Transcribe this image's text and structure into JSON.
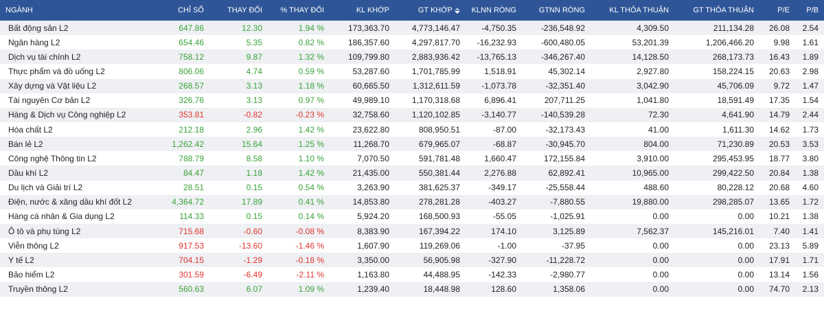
{
  "columns": [
    "NGÀNH",
    "CHỈ SỐ",
    "THAY ĐỔI",
    "% THAY ĐỔI",
    "KL KHỚP",
    "GT KHỚP",
    "KLNN RÒNG",
    "GTNN RÒNG",
    "KL THỎA THUẬN",
    "GT THỎA THUẬN",
    "P/E",
    "P/B"
  ],
  "sort": {
    "column": "GT KHỚP",
    "icon": "sort-icon"
  },
  "colors": {
    "header_bg": "#2e5597",
    "up": "#3aa23a",
    "down": "#e0342f",
    "row_alt": "#eef0f3"
  },
  "rows": [
    {
      "name": "Bất động sản L2",
      "index": "647.86",
      "change": "12.30",
      "pct": "1.94 %",
      "vol": "173,363.70",
      "val": "4,773,146.47",
      "klnn": "-4,750.35",
      "gtnn": "-236,548.92",
      "klthoa": "4,309.50",
      "gtthoa": "211,134.28",
      "pe": "26.08",
      "pb": "2.54",
      "dir": "up"
    },
    {
      "name": "Ngân hàng L2",
      "index": "654.46",
      "change": "5.35",
      "pct": "0.82 %",
      "vol": "186,357.60",
      "val": "4,297,817.70",
      "klnn": "-16,232.93",
      "gtnn": "-600,480.05",
      "klthoa": "53,201.39",
      "gtthoa": "1,206,466.20",
      "pe": "9.98",
      "pb": "1.61",
      "dir": "up"
    },
    {
      "name": "Dịch vụ tài chính L2",
      "index": "758.12",
      "change": "9.87",
      "pct": "1.32 %",
      "vol": "109,799.80",
      "val": "2,883,936.42",
      "klnn": "-13,765.13",
      "gtnn": "-346,267.40",
      "klthoa": "14,128.50",
      "gtthoa": "268,173.73",
      "pe": "16.43",
      "pb": "1.89",
      "dir": "up"
    },
    {
      "name": "Thực phẩm và đồ uống L2",
      "index": "806.06",
      "change": "4.74",
      "pct": "0.59 %",
      "vol": "53,287.60",
      "val": "1,701,785.99",
      "klnn": "1,518.91",
      "gtnn": "45,302.14",
      "klthoa": "2,927.80",
      "gtthoa": "158,224.15",
      "pe": "20.63",
      "pb": "2.98",
      "dir": "up"
    },
    {
      "name": "Xây dựng và Vật liệu L2",
      "index": "268.57",
      "change": "3.13",
      "pct": "1.18 %",
      "vol": "60,665.50",
      "val": "1,312,611.59",
      "klnn": "-1,073.78",
      "gtnn": "-32,351.40",
      "klthoa": "3,042.90",
      "gtthoa": "45,706.09",
      "pe": "9.72",
      "pb": "1.47",
      "dir": "up"
    },
    {
      "name": "Tài nguyên Cơ bản L2",
      "index": "326.76",
      "change": "3.13",
      "pct": "0.97 %",
      "vol": "49,989.10",
      "val": "1,170,318.68",
      "klnn": "6,896.41",
      "gtnn": "207,711.25",
      "klthoa": "1,041.80",
      "gtthoa": "18,591.49",
      "pe": "17.35",
      "pb": "1.54",
      "dir": "up"
    },
    {
      "name": "Hàng & Dịch vụ Công nghiệp L2",
      "index": "353.81",
      "change": "-0.82",
      "pct": "-0.23 %",
      "vol": "32,758.60",
      "val": "1,120,102.85",
      "klnn": "-3,140.77",
      "gtnn": "-140,539.28",
      "klthoa": "72.30",
      "gtthoa": "4,641.90",
      "pe": "14.79",
      "pb": "2.44",
      "dir": "down"
    },
    {
      "name": "Hóa chất L2",
      "index": "212.18",
      "change": "2.96",
      "pct": "1.42 %",
      "vol": "23,622.80",
      "val": "808,950.51",
      "klnn": "-87.00",
      "gtnn": "-32,173.43",
      "klthoa": "41.00",
      "gtthoa": "1,611.30",
      "pe": "14.62",
      "pb": "1.73",
      "dir": "up"
    },
    {
      "name": "Bán lẻ L2",
      "index": "1,262.42",
      "change": "15.64",
      "pct": "1.25 %",
      "vol": "11,268.70",
      "val": "679,965.07",
      "klnn": "-68.87",
      "gtnn": "-30,945.70",
      "klthoa": "804.00",
      "gtthoa": "71,230.89",
      "pe": "20.53",
      "pb": "3.53",
      "dir": "up"
    },
    {
      "name": "Công nghệ Thông tin L2",
      "index": "788.79",
      "change": "8.58",
      "pct": "1.10 %",
      "vol": "7,070.50",
      "val": "591,781.48",
      "klnn": "1,660.47",
      "gtnn": "172,155.84",
      "klthoa": "3,910.00",
      "gtthoa": "295,453.95",
      "pe": "18.77",
      "pb": "3.80",
      "dir": "up"
    },
    {
      "name": "Dầu khí L2",
      "index": "84.47",
      "change": "1.18",
      "pct": "1.42 %",
      "vol": "21,435.00",
      "val": "550,381.44",
      "klnn": "2,276.88",
      "gtnn": "62,892.41",
      "klthoa": "10,965.00",
      "gtthoa": "299,422.50",
      "pe": "20.84",
      "pb": "1.38",
      "dir": "up"
    },
    {
      "name": "Du lịch và Giải trí L2",
      "index": "28.51",
      "change": "0.15",
      "pct": "0.54 %",
      "vol": "3,263.90",
      "val": "381,625.37",
      "klnn": "-349.17",
      "gtnn": "-25,558.44",
      "klthoa": "488.60",
      "gtthoa": "80,228.12",
      "pe": "20.68",
      "pb": "4.60",
      "dir": "up"
    },
    {
      "name": "Điện, nước & xăng dầu khí đốt L2",
      "index": "4,364.72",
      "change": "17.89",
      "pct": "0.41 %",
      "vol": "14,853.80",
      "val": "278,281.28",
      "klnn": "-403.27",
      "gtnn": "-7,880.55",
      "klthoa": "19,880.00",
      "gtthoa": "298,285.07",
      "pe": "13.65",
      "pb": "1.72",
      "dir": "up"
    },
    {
      "name": "Hàng cá nhân & Gia dụng L2",
      "index": "114.33",
      "change": "0.15",
      "pct": "0.14 %",
      "vol": "5,924.20",
      "val": "168,500.93",
      "klnn": "-55.05",
      "gtnn": "-1,025.91",
      "klthoa": "0.00",
      "gtthoa": "0.00",
      "pe": "10.21",
      "pb": "1.38",
      "dir": "up"
    },
    {
      "name": "Ô tô và phụ tùng L2",
      "index": "715.68",
      "change": "-0.60",
      "pct": "-0.08 %",
      "vol": "8,383.90",
      "val": "167,394.22",
      "klnn": "174.10",
      "gtnn": "3,125.89",
      "klthoa": "7,562.37",
      "gtthoa": "145,216.01",
      "pe": "7.40",
      "pb": "1.41",
      "dir": "down"
    },
    {
      "name": "Viễn thông L2",
      "index": "917.53",
      "change": "-13.60",
      "pct": "-1.46 %",
      "vol": "1,607.90",
      "val": "119,269.06",
      "klnn": "-1.00",
      "gtnn": "-37.95",
      "klthoa": "0.00",
      "gtthoa": "0.00",
      "pe": "23.13",
      "pb": "5.89",
      "dir": "down"
    },
    {
      "name": "Y tế L2",
      "index": "704.15",
      "change": "-1.29",
      "pct": "-0.18 %",
      "vol": "3,350.00",
      "val": "56,905.98",
      "klnn": "-327.90",
      "gtnn": "-11,228.72",
      "klthoa": "0.00",
      "gtthoa": "0.00",
      "pe": "17.91",
      "pb": "1.71",
      "dir": "down"
    },
    {
      "name": "Bảo hiểm L2",
      "index": "301.59",
      "change": "-6.49",
      "pct": "-2.11 %",
      "vol": "1,163.80",
      "val": "44,488.95",
      "klnn": "-142.33",
      "gtnn": "-2,980.77",
      "klthoa": "0.00",
      "gtthoa": "0.00",
      "pe": "13.14",
      "pb": "1.56",
      "dir": "down"
    },
    {
      "name": "Truyền thông L2",
      "index": "560.63",
      "change": "6.07",
      "pct": "1.09 %",
      "vol": "1,239.40",
      "val": "18,448.98",
      "klnn": "128.60",
      "gtnn": "1,358.06",
      "klthoa": "0.00",
      "gtthoa": "0.00",
      "pe": "74.70",
      "pb": "2.13",
      "dir": "up"
    }
  ]
}
